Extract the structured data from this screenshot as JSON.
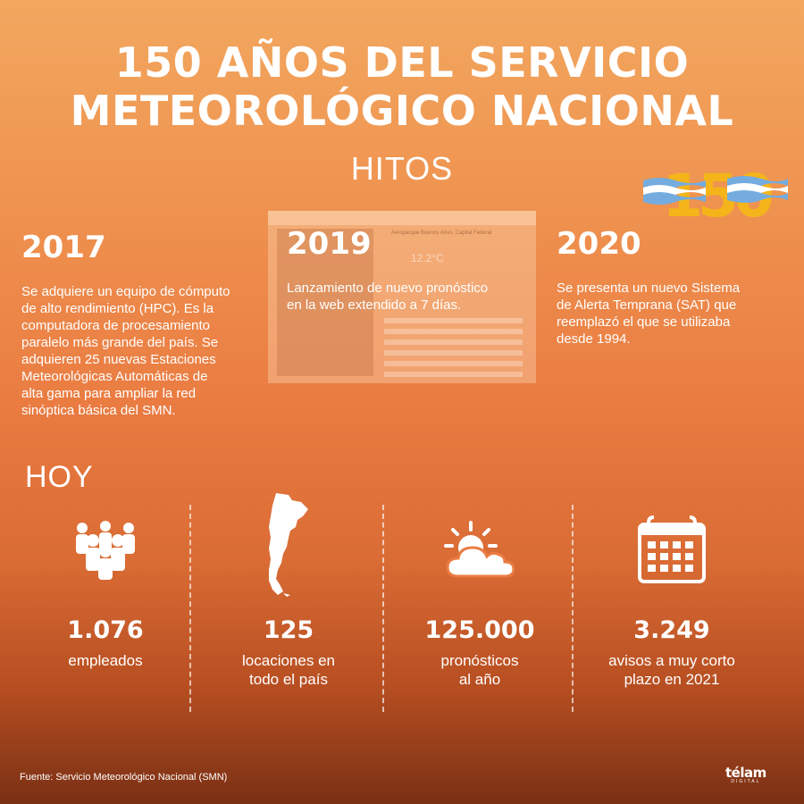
{
  "header": {
    "title_line1": "150 AÑOS DEL SERVICIO",
    "title_line2": "METEOROLÓGICO NACIONAL",
    "subtitle": "HITOS",
    "badge": "150"
  },
  "milestones": [
    {
      "year": "2017",
      "lines": [
        "Se adquiere un equipo de cómputo",
        "de alto rendimiento (HPC). Es la",
        "computadora de procesamiento",
        "paralelo más grande del país. Se",
        "adquieren 25 nuevas Estaciones",
        "Meteorológicas Automáticas de",
        "alta gama para ampliar la red",
        "sinóptica básica del SMN."
      ]
    },
    {
      "year": "2019",
      "lines": [
        "Lanzamiento de nuevo pronóstico",
        "en la web extendido a 7 días."
      ],
      "background_screenshot": {
        "location": "Aeroparque Buenos Aires, Capital Federal",
        "temperature": "12.2°C"
      }
    },
    {
      "year": "2020",
      "lines": [
        "Se presenta un nuevo Sistema",
        "de Alerta Temprana (SAT) que",
        "reemplazó el que se utilizaba",
        "desde 1994."
      ]
    }
  ],
  "today": {
    "heading": "HOY",
    "stats": [
      {
        "icon": "people-icon",
        "value": "1.076",
        "label_lines": [
          "empleados"
        ]
      },
      {
        "icon": "argentina-map-icon",
        "value": "125",
        "label_lines": [
          "locaciones en",
          "todo el país"
        ]
      },
      {
        "icon": "sun-cloud-icon",
        "value": "125.000",
        "label_lines": [
          "pronósticos",
          "al año"
        ]
      },
      {
        "icon": "calendar-icon",
        "value": "3.249",
        "label_lines": [
          "avisos a muy corto",
          "plazo en 2021"
        ]
      }
    ]
  },
  "footer": {
    "source": "Fuente: Servicio Meteorológico Nacional (SMN)",
    "logo": "télam",
    "logo_sub": "DIGITAL"
  },
  "colors": {
    "background_top": "#f2a75f",
    "background_bottom": "#7a3014",
    "badge_gold": "#f5b51a",
    "flag_blue": "#74acdf"
  }
}
